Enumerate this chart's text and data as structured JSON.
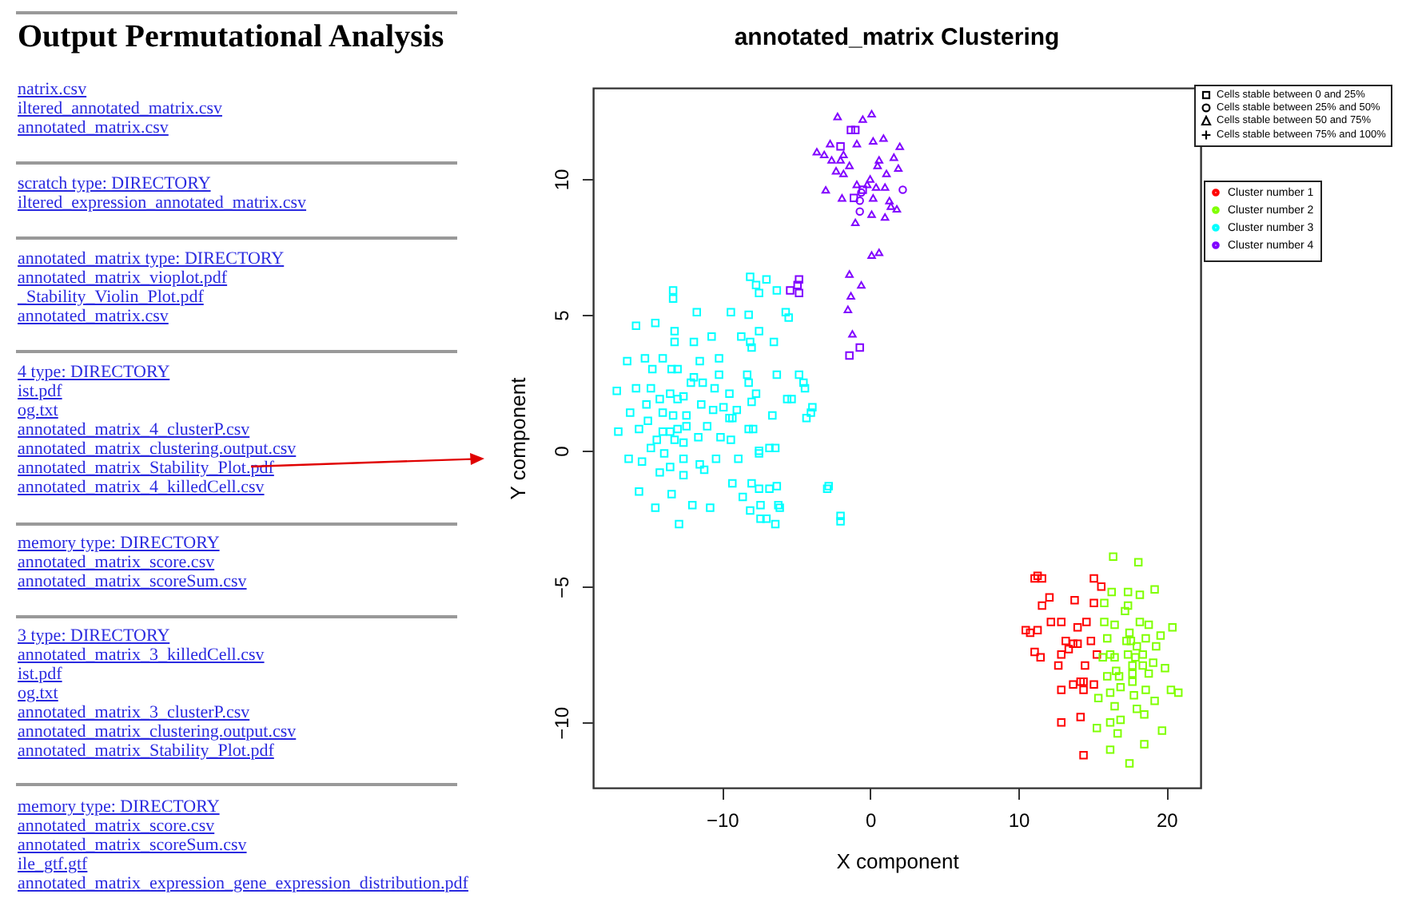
{
  "chart_data": {
    "type": "scatter",
    "title": "annotated_matrix  Clustering",
    "xlabel": "X component",
    "ylabel": "Y component",
    "xlim": [
      -18.7,
      22.3
    ],
    "ylim": [
      -12.4,
      13.35
    ],
    "xticks": [
      -10,
      0,
      10,
      20
    ],
    "yticks": [
      -10,
      -5,
      0,
      5,
      10
    ],
    "grid": false,
    "legend": "top right",
    "annotations": [
      "Output Permutational Analysis",
      "natrix.csv",
      "iltered_annotated_matrix.csv",
      "annotated_matrix.csv",
      "scratch type: DIRECTORY",
      "iltered_expression_annotated_matrix.csv",
      "annotated_matrix type: DIRECTORY",
      "annotated_matrix_vioplot.pdf",
      "_Stability_Violin_Plot.pdf",
      "annotated_matrix.csv",
      "4 type: DIRECTORY",
      "ist.pdf",
      "og.txt",
      "annotated_matrix_4_clusterP.csv",
      "annotated_matrix_clustering.output.csv",
      "annotated_matrix_Stability_Plot.pdf",
      "annotated_matrix_4_killedCell.csv",
      "memory type: DIRECTORY",
      "annotated_matrix_score.csv",
      "annotated_matrix_scoreSum.csv",
      "3 type: DIRECTORY",
      "annotated_matrix_3_killedCell.csv",
      "ist.pdf",
      "og.txt",
      "annotated_matrix_3_clusterP.csv",
      "annotated_matrix_clustering.output.csv",
      "annotated_matrix_Stability_Plot.pdf",
      "memory type: DIRECTORY",
      "annotated_matrix_score.csv",
      "annotated_matrix_scoreSum.csv",
      "ile_gtf.gtf",
      "annotated_matrix_expression_gene_expression_distribution.pdf",
      "Cells stable between 0 and 25%",
      "Cells stable between 25% and 50%",
      "Cells stable between 50 and 75%",
      "Cells stable between 75% and 100%"
    ],
    "series": [
      {
        "name": "Cluster number 1",
        "color": "#ff0000",
        "marker": "square",
        "x": [
          11.3,
          11.1,
          11.6,
          15.1,
          15.6,
          12.1,
          11.6,
          13.8,
          15.1,
          12.2,
          12.9,
          14.0,
          14.6,
          10.5,
          10.8,
          11.3,
          13.2,
          13.7,
          14.0,
          14.9,
          13.4,
          11.1,
          11.5,
          12.9,
          15.3,
          12.7,
          14.5,
          14.2,
          14.4,
          13.7,
          15.1,
          12.9,
          14.4,
          14.2,
          12.9,
          14.4
        ],
        "values": [
          -4.6,
          -4.7,
          -4.7,
          -4.7,
          -5.0,
          -5.4,
          -5.7,
          -5.5,
          -5.6,
          -6.3,
          -6.3,
          -6.5,
          -6.3,
          -6.6,
          -6.7,
          -6.6,
          -7.0,
          -7.1,
          -7.1,
          -7.0,
          -7.3,
          -7.4,
          -7.6,
          -7.5,
          -7.5,
          -7.9,
          -7.9,
          -8.5,
          -8.5,
          -8.6,
          -8.6,
          -8.8,
          -8.8,
          -9.8,
          -10.0,
          -11.2
        ]
      },
      {
        "name": "Cluster number 2",
        "color": "#80ff00",
        "marker": "square",
        "x": [
          16.4,
          18.1,
          16.3,
          17.4,
          18.2,
          19.2,
          15.8,
          17.4,
          17.2,
          15.8,
          16.5,
          18.2,
          18.8,
          20.4,
          17.5,
          16.0,
          17.3,
          17.6,
          18.0,
          18.6,
          19.6,
          19.3,
          15.7,
          16.2,
          16.5,
          17.4,
          17.9,
          18.4,
          17.7,
          18.4,
          19.1,
          19.9,
          16.6,
          16.8,
          16.0,
          17.7,
          17.7,
          18.8,
          16.9,
          16.2,
          15.4,
          17.8,
          18.6,
          19.2,
          20.3,
          20.8,
          16.5,
          18.0,
          18.5,
          16.9,
          16.2,
          15.3,
          16.7,
          19.7,
          18.5,
          16.2,
          17.5
        ],
        "values": [
          -3.9,
          -4.1,
          -5.2,
          -5.2,
          -5.3,
          -5.1,
          -5.6,
          -5.7,
          -5.9,
          -6.3,
          -6.4,
          -6.3,
          -6.4,
          -6.5,
          -6.7,
          -6.9,
          -7.0,
          -7.0,
          -7.2,
          -6.9,
          -6.8,
          -7.2,
          -7.6,
          -7.5,
          -7.6,
          -7.5,
          -7.6,
          -7.5,
          -7.9,
          -7.9,
          -7.8,
          -8.0,
          -8.1,
          -8.3,
          -8.3,
          -8.2,
          -8.5,
          -8.2,
          -8.7,
          -8.9,
          -9.1,
          -9.0,
          -8.8,
          -9.2,
          -8.8,
          -8.9,
          -9.4,
          -9.5,
          -9.7,
          -9.9,
          -10.0,
          -10.2,
          -10.4,
          -10.3,
          -10.8,
          -11.0,
          -11.5
        ]
      },
      {
        "name": "Cluster number 3",
        "color": "#00ffff",
        "marker": "square",
        "x": [
          -13.3,
          -13.3,
          -8.1,
          -7.7,
          -7.0,
          -7.5,
          -6.3,
          -11.7,
          -9.4,
          -8.2,
          -5.7,
          -5.5,
          -15.8,
          -14.5,
          -13.2,
          -13.2,
          -11.9,
          -10.7,
          -8.7,
          -7.5,
          -8.1,
          -8.0,
          -6.5,
          -16.4,
          -15.2,
          -14.0,
          -14.7,
          -13.4,
          -13.0,
          -11.5,
          -10.2,
          -10.2,
          -11.9,
          -12.1,
          -11.3,
          -8.3,
          -8.2,
          -6.3,
          -4.8,
          -4.5,
          -4.4,
          -17.1,
          -15.8,
          -14.8,
          -13.5,
          -14.2,
          -13.0,
          -12.6,
          -15.1,
          -16.2,
          -14.0,
          -13.3,
          -12.4,
          -11.4,
          -10.5,
          -10.6,
          -9.5,
          -9.0,
          -9.9,
          -9.5,
          -9.3,
          -7.7,
          -8.0,
          -6.6,
          -5.6,
          -5.3,
          -3.9,
          -4.0,
          -4.3,
          -17.0,
          -15.6,
          -15.0,
          -14.0,
          -13.5,
          -13.0,
          -12.4,
          -11.6,
          -11.0,
          -10.1,
          -9.4,
          -8.2,
          -7.9,
          -14.8,
          -14.4,
          -13.2,
          -12.6,
          -16.3,
          -15.4,
          -13.9,
          -13.5,
          -12.6,
          -11.5,
          -11.2,
          -10.4,
          -8.9,
          -7.5,
          -7.5,
          -6.8,
          -6.4,
          -14.2,
          -12.6,
          -15.6,
          -13.4,
          -9.3,
          -8.0,
          -7.5,
          -6.8,
          -6.3,
          -8.6,
          -14.5,
          -12.0,
          -10.8,
          -7.4,
          -6.2,
          -6.1,
          -8.1,
          -7.4,
          -7.0,
          -6.4,
          -12.9,
          -2.8,
          -2.9,
          -2.0,
          -2.0
        ],
        "values": [
          5.9,
          5.6,
          6.4,
          6.1,
          6.3,
          5.8,
          5.9,
          5.1,
          5.1,
          5.0,
          5.1,
          4.9,
          4.6,
          4.7,
          4.4,
          4.0,
          4.0,
          4.2,
          4.2,
          4.4,
          4.0,
          3.8,
          4.0,
          3.3,
          3.4,
          3.4,
          3.0,
          3.0,
          3.0,
          3.3,
          3.4,
          2.8,
          2.7,
          2.5,
          2.5,
          2.8,
          2.5,
          2.8,
          2.8,
          2.5,
          2.3,
          2.2,
          2.3,
          2.3,
          2.1,
          1.9,
          1.9,
          2.0,
          1.7,
          1.4,
          1.4,
          1.3,
          1.3,
          1.7,
          2.3,
          1.5,
          2.1,
          1.5,
          1.6,
          1.2,
          1.2,
          2.1,
          1.8,
          1.3,
          1.9,
          1.9,
          1.6,
          1.4,
          1.2,
          0.7,
          0.8,
          1.1,
          0.7,
          0.7,
          0.8,
          0.9,
          0.5,
          0.9,
          0.5,
          0.4,
          0.8,
          0.8,
          0.1,
          0.4,
          0.4,
          0.3,
          -0.3,
          -0.4,
          -0.1,
          -0.6,
          -0.3,
          -0.5,
          -0.7,
          -0.3,
          -0.3,
          0.0,
          -0.1,
          0.1,
          0.1,
          -0.8,
          -0.9,
          -1.5,
          -1.6,
          -1.2,
          -1.2,
          -1.4,
          -1.4,
          -1.3,
          -1.7,
          -2.1,
          -2.0,
          -2.1,
          -2.0,
          -2.0,
          -2.1,
          -2.2,
          -2.5,
          -2.5,
          -2.7,
          -2.7,
          -1.3,
          -1.4,
          -2.4,
          -2.6
        ]
      },
      {
        "name": "Cluster number 4",
        "color": "#8000ff",
        "marker": "triangle",
        "x": [
          -2.2,
          -0.5,
          0.1,
          -2.7,
          -0.9,
          0.2,
          0.9,
          2.0,
          -3.6,
          -3.1,
          -2.6,
          -1.8,
          -2.0,
          -1.4,
          0.6,
          1.6,
          0.5,
          1.9,
          -2.3,
          -1.8,
          1.1,
          -3.0,
          -0.9,
          -0.2,
          0.0,
          0.4,
          1.0,
          -1.9,
          0.2,
          1.3,
          1.4,
          1.8,
          0.1,
          1.0,
          -1.0,
          0.1,
          0.6,
          -1.4,
          -0.6,
          -1.3,
          -1.5,
          -1.2
        ],
        "values": [
          12.3,
          12.2,
          12.4,
          11.3,
          11.3,
          11.4,
          11.5,
          11.2,
          11.0,
          10.9,
          10.7,
          10.9,
          10.7,
          10.5,
          10.7,
          10.8,
          10.5,
          10.4,
          10.3,
          10.2,
          10.2,
          9.6,
          9.8,
          9.8,
          10.0,
          9.7,
          9.7,
          9.3,
          9.3,
          9.2,
          9.0,
          8.9,
          8.7,
          8.6,
          8.4,
          7.2,
          7.3,
          6.5,
          6.1,
          5.7,
          5.2,
          4.3
        ]
      },
      {
        "color": "#8000ff",
        "marker": "square",
        "x": [
          -1.3,
          -1.0,
          -2.0,
          -1.1,
          -0.5,
          -5.4,
          -4.8,
          -4.9,
          -4.8,
          -1.4,
          -0.7
        ],
        "values": [
          11.8,
          11.8,
          11.2,
          9.3,
          9.6,
          5.9,
          6.3,
          6.1,
          5.8,
          3.5,
          3.8
        ]
      },
      {
        "color": "#8000ff",
        "marker": "circle",
        "x": [
          -0.7,
          -0.7,
          2.2,
          -0.6
        ],
        "values": [
          9.2,
          8.8,
          9.6,
          9.5
        ]
      }
    ]
  }
}
